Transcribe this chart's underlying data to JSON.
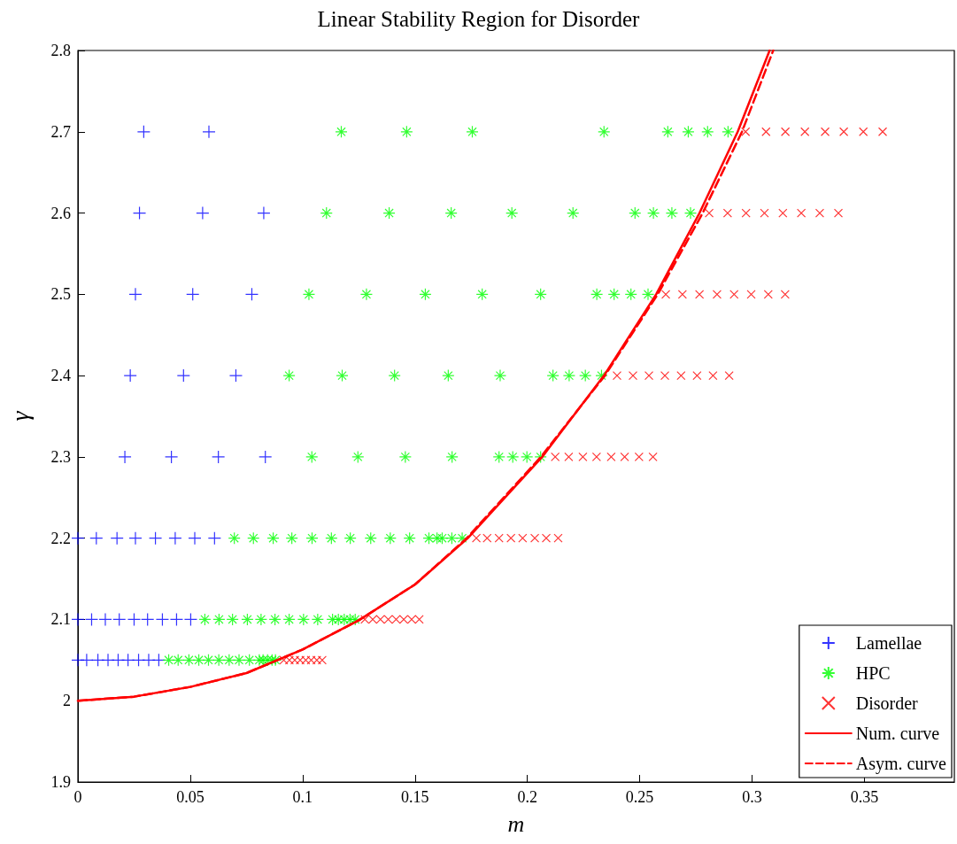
{
  "chart_data": {
    "type": "scatter",
    "title": "Linear Stability Region for Disorder",
    "xlabel": "m",
    "ylabel": "γ",
    "xlim": [
      0,
      0.39
    ],
    "xticks": [
      0,
      0.05,
      0.1,
      0.15,
      0.2,
      0.25,
      0.3,
      0.35
    ],
    "ylim": [
      1.9,
      2.8
    ],
    "yticks": [
      1.9,
      2,
      2.1,
      2.2,
      2.3,
      2.4,
      2.5,
      2.6,
      2.7,
      2.8
    ],
    "grid": false,
    "legend": "bottom right",
    "series": [
      {
        "name": "Lamellae",
        "marker": "plus",
        "color": "#0000ff",
        "x": [
          0.0293,
          0.0583,
          0.0274,
          0.0555,
          0.0827,
          0.0256,
          0.0511,
          0.0774,
          0.0233,
          0.047,
          0.0703,
          0.0209,
          0.0416,
          0.0625,
          0.0834,
          0,
          0.0082,
          0.0174,
          0.0256,
          0.0345,
          0.0433,
          0.052,
          0.0608,
          0,
          0.0061,
          0.0122,
          0.0184,
          0.025,
          0.031,
          0.0376,
          0.0439,
          0.0502,
          0,
          0.0039,
          0.0089,
          0.0134,
          0.0179,
          0.0223,
          0.027,
          0.0315,
          0.036
        ],
        "values": [
          2.7,
          2.7,
          2.6,
          2.6,
          2.6,
          2.5,
          2.5,
          2.5,
          2.4,
          2.4,
          2.4,
          2.3,
          2.3,
          2.3,
          2.3,
          2.2,
          2.2,
          2.2,
          2.2,
          2.2,
          2.2,
          2.2,
          2.2,
          2.1,
          2.1,
          2.1,
          2.1,
          2.1,
          2.1,
          2.1,
          2.1,
          2.1,
          2.05,
          2.05,
          2.05,
          2.05,
          2.05,
          2.05,
          2.05,
          2.05,
          2.05
        ]
      },
      {
        "name": "HPC",
        "marker": "cross",
        "color": "#00ff00",
        "x": [
          0.1172,
          0.1463,
          0.1755,
          0.2341,
          0.2625,
          0.2716,
          0.2802,
          0.2893,
          0.1106,
          0.1385,
          0.1661,
          0.1931,
          0.2203,
          0.2479,
          0.2561,
          0.2643,
          0.2726,
          0.1028,
          0.1284,
          0.1546,
          0.1799,
          0.2059,
          0.2309,
          0.2386,
          0.2461,
          0.2537,
          0.094,
          0.1176,
          0.1409,
          0.1648,
          0.1879,
          0.2114,
          0.2186,
          0.2258,
          0.233,
          0.1041,
          0.1246,
          0.1457,
          0.1665,
          0.1874,
          0.1935,
          0.1998,
          0.2059,
          0.0696,
          0.0781,
          0.0869,
          0.0952,
          0.1042,
          0.1128,
          0.1212,
          0.1303,
          0.139,
          0.1476,
          0.1562,
          0.1598,
          0.1621,
          0.1664,
          0.171,
          0.0565,
          0.0628,
          0.0688,
          0.0754,
          0.0815,
          0.0877,
          0.094,
          0.1004,
          0.1067,
          0.1133,
          0.1159,
          0.1185,
          0.1211,
          0.1234,
          0.0404,
          0.0446,
          0.0494,
          0.0538,
          0.0581,
          0.0627,
          0.0673,
          0.0717,
          0.0763,
          0.0807,
          0.0824,
          0.0844,
          0.0864,
          0.0879
        ],
        "values": [
          2.7,
          2.7,
          2.7,
          2.7,
          2.7,
          2.7,
          2.7,
          2.7,
          2.6,
          2.6,
          2.6,
          2.6,
          2.6,
          2.6,
          2.6,
          2.6,
          2.6,
          2.5,
          2.5,
          2.5,
          2.5,
          2.5,
          2.5,
          2.5,
          2.5,
          2.5,
          2.4,
          2.4,
          2.4,
          2.4,
          2.4,
          2.4,
          2.4,
          2.4,
          2.4,
          2.3,
          2.3,
          2.3,
          2.3,
          2.3,
          2.3,
          2.3,
          2.3,
          2.2,
          2.2,
          2.2,
          2.2,
          2.2,
          2.2,
          2.2,
          2.2,
          2.2,
          2.2,
          2.2,
          2.2,
          2.2,
          2.2,
          2.2,
          2.1,
          2.1,
          2.1,
          2.1,
          2.1,
          2.1,
          2.1,
          2.1,
          2.1,
          2.1,
          2.1,
          2.1,
          2.1,
          2.1,
          2.05,
          2.05,
          2.05,
          2.05,
          2.05,
          2.05,
          2.05,
          2.05,
          2.05,
          2.05,
          2.05,
          2.05,
          2.05,
          2.05
        ]
      },
      {
        "name": "Disorder",
        "marker": "x",
        "color": "#ff0000",
        "x": [
          0.2971,
          0.3062,
          0.3148,
          0.3235,
          0.3325,
          0.3408,
          0.3495,
          0.3581,
          0.2809,
          0.2891,
          0.2973,
          0.3055,
          0.3137,
          0.3219,
          0.3301,
          0.3384,
          0.2616,
          0.269,
          0.2766,
          0.2844,
          0.292,
          0.2996,
          0.3072,
          0.3147,
          0.2399,
          0.247,
          0.2541,
          0.2612,
          0.2684,
          0.2755,
          0.2826,
          0.2898,
          0.2124,
          0.2184,
          0.2247,
          0.2308,
          0.2373,
          0.2433,
          0.2497,
          0.2559,
          0.1773,
          0.1821,
          0.1874,
          0.1927,
          0.1979,
          0.2033,
          0.2084,
          0.2137,
          0.1277,
          0.1312,
          0.1346,
          0.1381,
          0.1416,
          0.145,
          0.1485,
          0.1519,
          0.0916,
          0.0941,
          0.0965,
          0.0989,
          0.1014,
          0.1038,
          0.1063,
          0.1087
        ],
        "values": [
          2.7,
          2.7,
          2.7,
          2.7,
          2.7,
          2.7,
          2.7,
          2.7,
          2.6,
          2.6,
          2.6,
          2.6,
          2.6,
          2.6,
          2.6,
          2.6,
          2.5,
          2.5,
          2.5,
          2.5,
          2.5,
          2.5,
          2.5,
          2.5,
          2.4,
          2.4,
          2.4,
          2.4,
          2.4,
          2.4,
          2.4,
          2.4,
          2.3,
          2.3,
          2.3,
          2.3,
          2.3,
          2.3,
          2.3,
          2.3,
          2.2,
          2.2,
          2.2,
          2.2,
          2.2,
          2.2,
          2.2,
          2.2,
          2.1,
          2.1,
          2.1,
          2.1,
          2.1,
          2.1,
          2.1,
          2.1,
          2.05,
          2.05,
          2.05,
          2.05,
          2.05,
          2.05,
          2.05,
          2.05
        ]
      },
      {
        "name": "Num. curve",
        "type": "line",
        "marker": "none",
        "line_style": "solid",
        "color": "#ff0000",
        "x": [
          0,
          0.025,
          0.05,
          0.075,
          0.1,
          0.125,
          0.15,
          0.1735,
          0.2066,
          0.2341,
          0.2573,
          0.2766,
          0.2936,
          0.3078
        ],
        "values": [
          2,
          2.005,
          2.017,
          2.034,
          2.063,
          2.099,
          2.143,
          2.2,
          2.3,
          2.4,
          2.5,
          2.6,
          2.7,
          2.8
        ]
      },
      {
        "name": "Asym. curve",
        "type": "line",
        "marker": "none",
        "line_style": "dashed",
        "color": "#ff0000",
        "x": [
          0,
          0.025,
          0.05,
          0.075,
          0.1,
          0.125,
          0.15,
          0.173,
          0.206,
          0.2345,
          0.258,
          0.278,
          0.2955,
          0.3094
        ],
        "values": [
          2,
          2.005,
          2.017,
          2.034,
          2.063,
          2.099,
          2.143,
          2.2,
          2.3,
          2.4,
          2.5,
          2.6,
          2.7,
          2.8
        ]
      }
    ]
  }
}
